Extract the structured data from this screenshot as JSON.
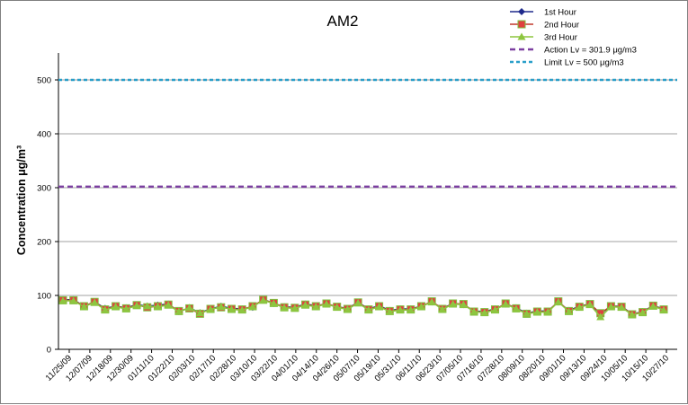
{
  "chart_data": {
    "type": "line",
    "title": "AM2",
    "ylabel": "Concentration μg/m³",
    "xlabel": "",
    "ylim": [
      0,
      550
    ],
    "yticks": [
      0,
      100,
      200,
      300,
      400,
      500
    ],
    "grid": true,
    "legend_position": "top-right",
    "x_tick_labels": [
      "11/25/09",
      "12/07/09",
      "12/18/09",
      "12/30/09",
      "01/11/10",
      "01/22/10",
      "02/03/10",
      "02/17/10",
      "02/28/10",
      "03/10/10",
      "03/22/10",
      "04/01/10",
      "04/14/10",
      "04/26/10",
      "05/07/10",
      "05/19/10",
      "05/31/10",
      "06/11/10",
      "06/23/10",
      "07/05/10",
      "07/16/10",
      "07/28/10",
      "08/09/10",
      "08/20/10",
      "09/01/10",
      "09/13/10",
      "09/24/10",
      "10/05/10",
      "10/15/10",
      "10/27/10"
    ],
    "series": [
      {
        "name": "1st Hour",
        "color": "#1f2a8c",
        "marker": "diamond",
        "values": [
          92,
          92,
          80,
          88,
          76,
          80,
          77,
          83,
          80,
          82,
          84,
          70,
          77,
          68,
          75,
          80,
          76,
          75,
          78,
          93,
          85,
          79,
          78,
          84,
          81,
          84,
          79,
          76,
          87,
          75,
          81,
          72,
          75,
          75,
          80,
          88,
          76,
          85,
          83,
          71,
          70,
          75,
          84,
          77,
          67,
          71,
          71,
          88,
          72,
          80,
          84,
          66,
          80,
          80,
          65,
          70,
          81,
          75
        ]
      },
      {
        "name": "2nd Hour",
        "color": "#c0392b",
        "marker": "square",
        "values": [
          91,
          91,
          80,
          88,
          74,
          80,
          76,
          82,
          78,
          80,
          83,
          71,
          76,
          66,
          75,
          78,
          75,
          74,
          80,
          92,
          86,
          78,
          77,
          83,
          80,
          85,
          79,
          75,
          87,
          74,
          80,
          71,
          74,
          74,
          80,
          89,
          75,
          85,
          84,
          70,
          69,
          74,
          85,
          76,
          66,
          70,
          70,
          89,
          71,
          79,
          84,
          67,
          80,
          79,
          65,
          69,
          81,
          74
        ]
      },
      {
        "name": "3rd Hour",
        "color": "#8dc63f",
        "marker": "triangle",
        "values": [
          90,
          90,
          79,
          87,
          73,
          79,
          75,
          81,
          80,
          79,
          82,
          70,
          77,
          67,
          74,
          79,
          74,
          73,
          79,
          91,
          85,
          77,
          76,
          82,
          79,
          84,
          78,
          74,
          86,
          73,
          79,
          70,
          73,
          73,
          79,
          88,
          74,
          84,
          83,
          70,
          68,
          73,
          84,
          75,
          66,
          69,
          69,
          88,
          70,
          78,
          83,
          60,
          79,
          78,
          64,
          68,
          80,
          73
        ]
      },
      {
        "name": "Action Lv = 301.9 μg/m3",
        "color": "#7b3fa0",
        "style": "dashed",
        "value": 301.9
      },
      {
        "name": "Limit Lv = 500 μg/m3",
        "color": "#2a9fc9",
        "style": "dashed",
        "value": 500
      }
    ]
  }
}
